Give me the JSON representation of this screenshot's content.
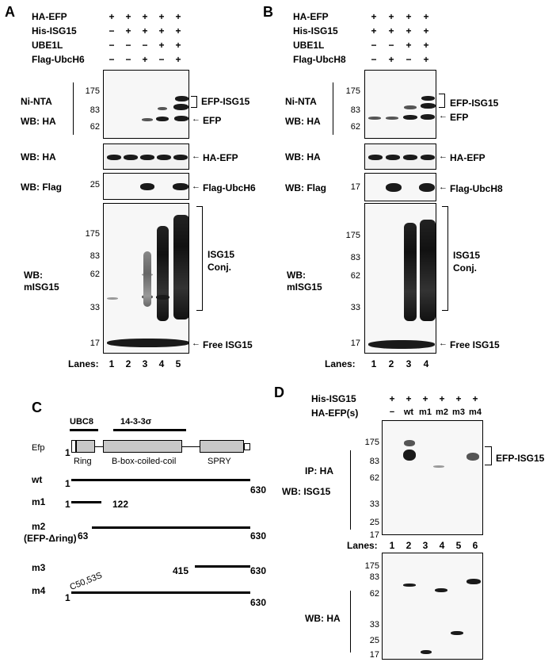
{
  "panels": {
    "A": {
      "letter": "A",
      "rows": [
        {
          "label": "HA-EFP",
          "signs": [
            "+",
            "+",
            "+",
            "+",
            "+"
          ]
        },
        {
          "label": "His-ISG15",
          "signs": [
            "−",
            "+",
            "+",
            "+",
            "+"
          ]
        },
        {
          "label": "UBE1L",
          "signs": [
            "−",
            "−",
            "−",
            "+",
            "+"
          ]
        },
        {
          "label": "Flag-UbcH6",
          "signs": [
            "−",
            "−",
            "+",
            "−",
            "+"
          ]
        }
      ],
      "blot1_labels": [
        "Ni-NTA",
        "WB: HA"
      ],
      "blot1_mw": [
        "175",
        "83",
        "62"
      ],
      "blot1_marks": [
        "EFP-ISG15",
        "EFP"
      ],
      "blot2_label": "WB: HA",
      "blot2_mark": "HA-EFP",
      "blot3_label": "WB: Flag",
      "blot3_mw": "25",
      "blot3_mark": "Flag-UbcH6",
      "blot4_labels": [
        "WB:",
        "mISG15"
      ],
      "blot4_mw": [
        "175",
        "83",
        "62",
        "33",
        "17"
      ],
      "blot4_marks": [
        "ISG15",
        "Conj.",
        "Free ISG15"
      ],
      "lanes_label": "Lanes:",
      "lanes": [
        "1",
        "2",
        "3",
        "4",
        "5"
      ]
    },
    "B": {
      "letter": "B",
      "rows": [
        {
          "label": "HA-EFP",
          "signs": [
            "+",
            "+",
            "+",
            "+"
          ]
        },
        {
          "label": "His-ISG15",
          "signs": [
            "+",
            "+",
            "+",
            "+"
          ]
        },
        {
          "label": "UBE1L",
          "signs": [
            "−",
            "−",
            "+",
            "+"
          ]
        },
        {
          "label": "Flag-UbcH8",
          "signs": [
            "−",
            "+",
            "−",
            "+"
          ]
        }
      ],
      "blot1_labels": [
        "Ni-NTA",
        "WB: HA"
      ],
      "blot1_mw": [
        "175",
        "83",
        "62"
      ],
      "blot1_marks": [
        "EFP-ISG15",
        "EFP"
      ],
      "blot2_label": "WB: HA",
      "blot2_mark": "HA-EFP",
      "blot3_label": "WB: Flag",
      "blot3_mw": "17",
      "blot3_mark": "Flag-UbcH8",
      "blot4_labels": [
        "WB:",
        "mISG15"
      ],
      "blot4_mw": [
        "175",
        "83",
        "62",
        "33",
        "17"
      ],
      "blot4_marks": [
        "ISG15",
        "Conj.",
        "Free ISG15"
      ],
      "lanes_label": "Lanes:",
      "lanes": [
        "1",
        "2",
        "3",
        "4"
      ]
    },
    "C": {
      "letter": "C",
      "top_labels": [
        "UBC8",
        "14-3-3σ"
      ],
      "efp_label": "Efp",
      "efp_start": "1",
      "domains": [
        "Ring",
        "B-box-coiled-coil",
        "SPRY"
      ],
      "constructs": [
        {
          "name": "wt",
          "start": "1",
          "end": "630"
        },
        {
          "name": "m1",
          "start": "1",
          "end": "122"
        },
        {
          "name": "m2",
          "sub": "(EFP-Δring)",
          "start": "63",
          "end": "630"
        },
        {
          "name": "m3",
          "start": "415",
          "end": "630"
        },
        {
          "name": "m4",
          "start": "1",
          "end": "630",
          "mutation": "C50,53S"
        }
      ]
    },
    "D": {
      "letter": "D",
      "rows": [
        {
          "label": "His-ISG15",
          "signs": [
            "+",
            "+",
            "+",
            "+",
            "+",
            "+"
          ]
        },
        {
          "label": "HA-EFP(s)",
          "signs": [
            "−",
            "wt",
            "m1",
            "m2",
            "m3",
            "m4"
          ]
        }
      ],
      "blot1_labels": [
        "IP: HA",
        "WB: ISG15"
      ],
      "blot1_mw": [
        "175",
        "83",
        "62",
        "33",
        "25",
        "17"
      ],
      "blot1_mark": "EFP-ISG15",
      "lanes_label": "Lanes:",
      "lanes": [
        "1",
        "2",
        "3",
        "4",
        "5",
        "6"
      ],
      "blot2_label": "WB: HA",
      "blot2_mw": [
        "175",
        "83",
        "62",
        "33",
        "25",
        "17"
      ]
    }
  }
}
